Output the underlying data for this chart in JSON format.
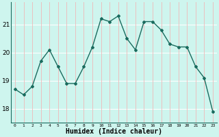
{
  "x": [
    0,
    1,
    2,
    3,
    4,
    5,
    6,
    7,
    8,
    9,
    10,
    11,
    12,
    13,
    14,
    15,
    16,
    17,
    18,
    19,
    20,
    21,
    22,
    23
  ],
  "y": [
    18.7,
    18.5,
    18.8,
    19.7,
    20.1,
    19.5,
    18.9,
    18.9,
    19.5,
    20.2,
    21.2,
    21.1,
    21.3,
    20.5,
    20.1,
    21.1,
    21.1,
    20.8,
    20.3,
    20.2,
    20.2,
    19.5,
    19.1,
    17.9
  ],
  "line_color": "#1a6b5e",
  "marker": "D",
  "marker_size": 2,
  "bg_color": "#cef5ee",
  "hgrid_color": "#ffffff",
  "vgrid_color": "#f0b8b8",
  "xlabel": "Humidex (Indice chaleur)",
  "xlabel_fontsize": 7,
  "ylabel_ticks": [
    18,
    19,
    20,
    21
  ],
  "xtick_labels": [
    "0",
    "1",
    "2",
    "3",
    "4",
    "5",
    "6",
    "7",
    "8",
    "9",
    "10",
    "11",
    "12",
    "13",
    "14",
    "15",
    "16",
    "17",
    "18",
    "19",
    "20",
    "21",
    "22",
    "23"
  ],
  "xlim": [
    -0.5,
    23.5
  ],
  "ylim": [
    17.5,
    21.8
  ]
}
